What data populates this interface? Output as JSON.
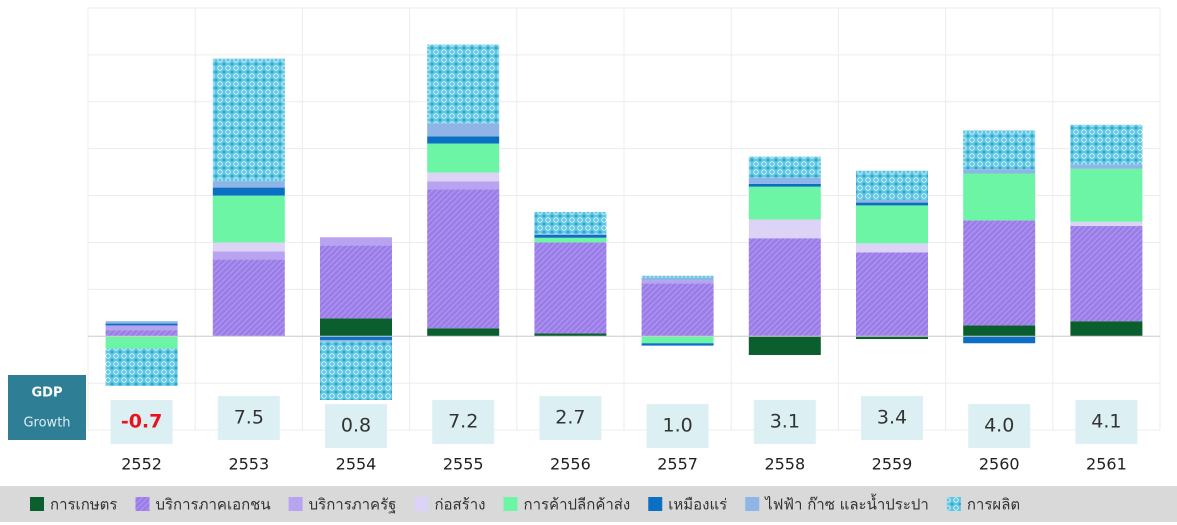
{
  "chart_data": {
    "type": "stacked_bar",
    "categories": [
      "2552",
      "2553",
      "2554",
      "2555",
      "2556",
      "2557",
      "2558",
      "2559",
      "2560",
      "2561"
    ],
    "series": [
      {
        "name": "การเกษตร",
        "color": "#0b5e2e",
        "values": [
          0,
          0,
          0.38,
          0.17,
          0.06,
          0,
          -0.4,
          -0.06,
          0.23,
          0.32
        ]
      },
      {
        "name": "บริการภาคเอกชน",
        "color": "#9b7de8",
        "pattern": "hatch",
        "values": [
          0.13,
          1.64,
          1.56,
          2.96,
          1.94,
          1.13,
          2.09,
          1.79,
          2.24,
          2.03
        ]
      },
      {
        "name": "บริการภาครัฐ",
        "color": "#b7a3ef",
        "values": [
          0.1,
          0.17,
          0.17,
          0.17,
          0,
          0.06,
          0,
          0,
          0,
          0
        ]
      },
      {
        "name": "ก่อสร้าง",
        "color": "#ddd3f7",
        "values": [
          0,
          0.19,
          0,
          0.19,
          0,
          0,
          0.4,
          0.19,
          0,
          0.09
        ]
      },
      {
        "name": "การค้าปลีกค้าส่ง",
        "color": "#6cf5a5",
        "values": [
          -0.26,
          1.0,
          0,
          0.62,
          0.1,
          -0.15,
          0.7,
          0.81,
          1.0,
          1.13
        ]
      },
      {
        "name": "เหมืองแร่",
        "color": "#0b6fc4",
        "values": [
          0.04,
          0.17,
          -0.08,
          0.15,
          0.06,
          -0.05,
          0.06,
          0.06,
          -0.15,
          0
        ]
      },
      {
        "name": "ไฟฟ้า ก๊าซ และน้ำประปา",
        "color": "#8fb4e6",
        "values": [
          0.05,
          0.13,
          -0.04,
          0.28,
          0.02,
          0.06,
          0.13,
          0.06,
          0.09,
          0.09
        ]
      },
      {
        "name": "การผลิต",
        "color": "#5ec6e3",
        "pattern": "dots",
        "values": [
          -0.8,
          2.62,
          -1.24,
          1.68,
          0.47,
          0.04,
          0.45,
          0.62,
          0.83,
          0.85
        ]
      }
    ],
    "gdp_title": "GDP",
    "gdp_subtitle": "Growth",
    "gdp_growth": [
      -0.7,
      7.5,
      0.8,
      7.2,
      2.7,
      1.0,
      3.1,
      3.4,
      4.0,
      4.1
    ],
    "value_labels": [
      "-0.7",
      "7.5",
      "0.8",
      "7.2",
      "2.7",
      "1.0",
      "3.1",
      "3.4",
      "4.0",
      "4.1"
    ],
    "negative_color": "#e8141c",
    "ylim": [
      -2,
      7
    ],
    "yticks": [
      -2,
      -1,
      0,
      1,
      2,
      3,
      4,
      5,
      6,
      7
    ],
    "grid": true
  }
}
